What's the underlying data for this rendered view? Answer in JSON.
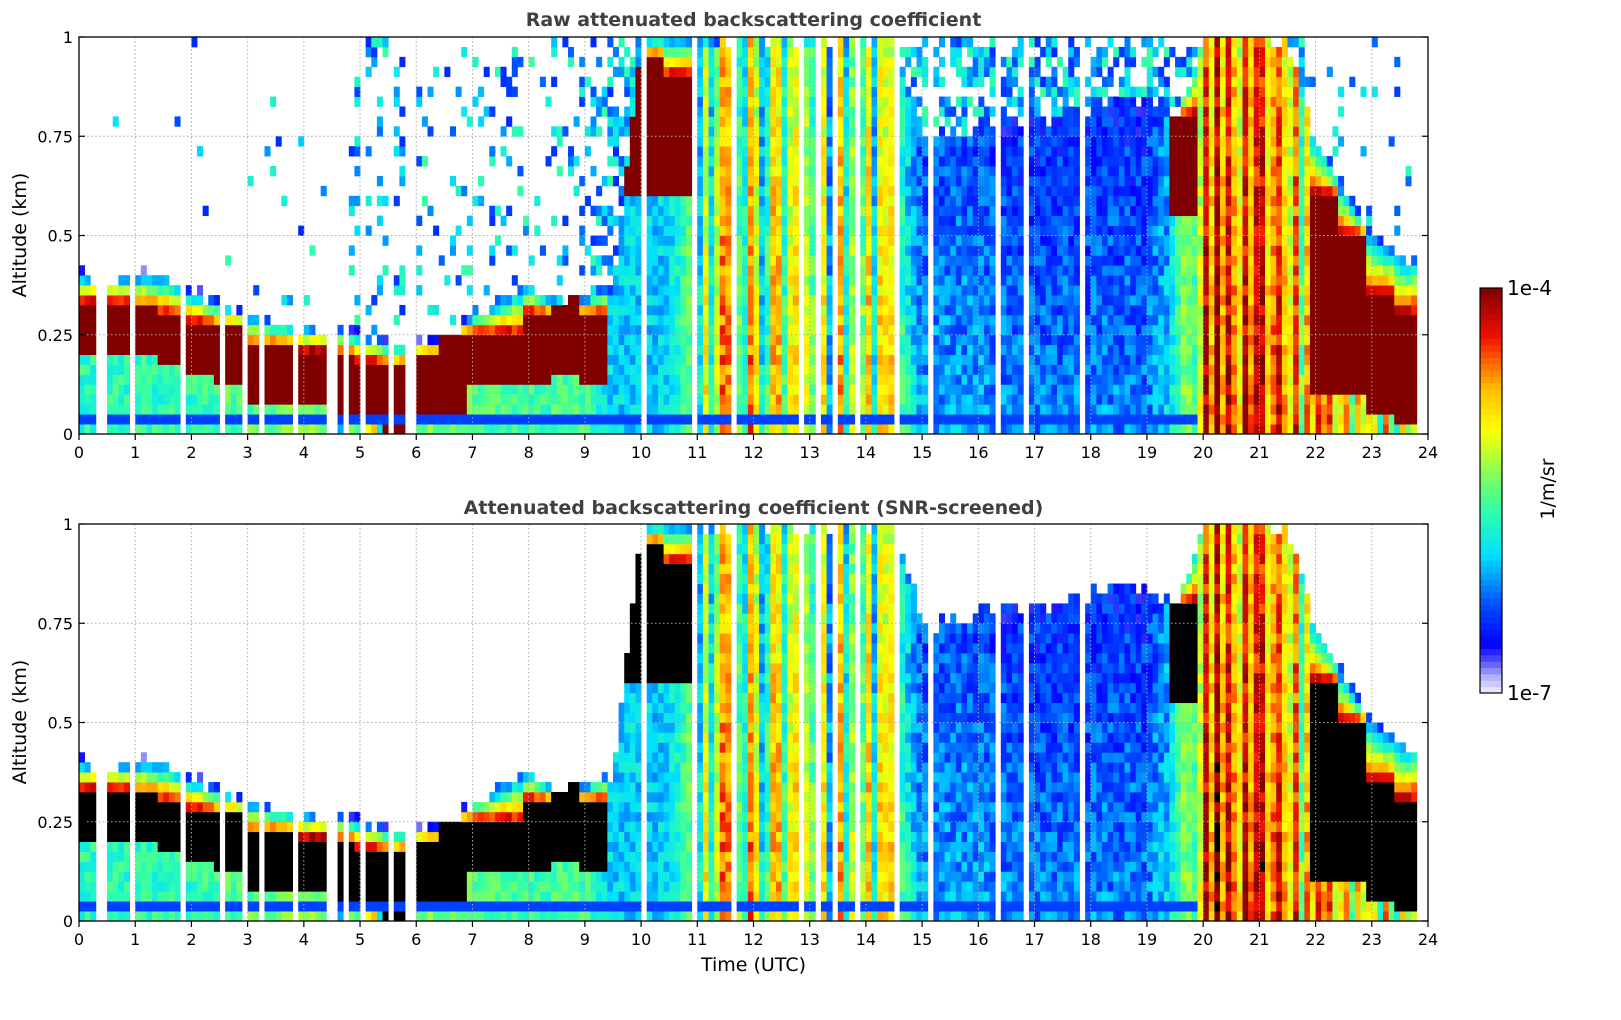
{
  "chart_data": [
    {
      "type": "heatmap",
      "title": "Raw attenuated backscattering coefficient",
      "xlabel": "",
      "ylabel": "Altitude (km)",
      "xlim": [
        0,
        24
      ],
      "ylim": [
        0,
        1
      ],
      "mode": "raw"
    },
    {
      "type": "heatmap",
      "title": "Attenuated backscattering coefficient (SNR-screened)",
      "xlabel": "Time (UTC)",
      "ylabel": "Altitude (km)",
      "xlim": [
        0,
        24
      ],
      "ylim": [
        0,
        1
      ],
      "mode": "screened"
    }
  ],
  "axes": {
    "x_ticks": [
      "0",
      "1",
      "2",
      "3",
      "4",
      "5",
      "6",
      "7",
      "8",
      "9",
      "10",
      "11",
      "12",
      "13",
      "14",
      "15",
      "16",
      "17",
      "18",
      "19",
      "20",
      "21",
      "22",
      "23",
      "24"
    ],
    "y_ticks": [
      {
        "v": 0,
        "label": "0"
      },
      {
        "v": 0.25,
        "label": "0.25"
      },
      {
        "v": 0.5,
        "label": "0.5"
      },
      {
        "v": 0.75,
        "label": "0.75"
      },
      {
        "v": 1,
        "label": "1"
      }
    ],
    "grid": true
  },
  "colorbar": {
    "label": "1/m/sr",
    "max_label": "1e-4",
    "min_label": "1e-7",
    "log_min": -7,
    "log_max": -4,
    "scale": "log"
  },
  "profiles": {
    "time_step_h": 0.5,
    "data_end_utc": 23.8,
    "signal_top_km": [
      0.4,
      0.4,
      0.4,
      0.4,
      0.36,
      0.33,
      0.3,
      0.28,
      0.27,
      0.27,
      0.25,
      0.23,
      0.23,
      0.24,
      0.3,
      0.34,
      0.38,
      0.33,
      0.34,
      0.38,
      1,
      1,
      1,
      1,
      1,
      1,
      1,
      1,
      1,
      1,
      0.75,
      0.75,
      0.78,
      0.78,
      0.8,
      0.8,
      0.82,
      0.85,
      0.85,
      0.8,
      1,
      1,
      1,
      1,
      0.75,
      0.62,
      0.5,
      0.45
    ],
    "dense_base_km": [
      0.2,
      0.2,
      0.19,
      0.17,
      0.15,
      0.12,
      0.08,
      0.07,
      0.07,
      0.05,
      0.02,
      0.0,
      0.02,
      0.05,
      0.12,
      0.12,
      0.12,
      0.15,
      0.12,
      0.6,
      0.6,
      0.6,
      0,
      0,
      0,
      0,
      0,
      0,
      0,
      0,
      0,
      0,
      0,
      0,
      0,
      0,
      0,
      0,
      0,
      0.55,
      0,
      0,
      0,
      0,
      0.1,
      0.1,
      0.05,
      0.03
    ],
    "dense_top_km": [
      0.33,
      0.33,
      0.32,
      0.3,
      0.28,
      0.27,
      0.22,
      0.22,
      0.21,
      0.2,
      0.18,
      0.17,
      0.2,
      0.25,
      0.25,
      0.25,
      0.3,
      0.35,
      0.3,
      0.95,
      0.95,
      0.9,
      0,
      0,
      0,
      0,
      0,
      0,
      0,
      0,
      0,
      0,
      0,
      0,
      0,
      0,
      0,
      0,
      0,
      0.8,
      0,
      0,
      0,
      0,
      0.6,
      0.5,
      0.35,
      0.3
    ],
    "background_log10": [
      -5.7,
      -5.7,
      -5.7,
      -5.7,
      -5.7,
      -5.6,
      -5.5,
      -5.5,
      -5.4,
      -5.4,
      -5.3,
      -5.3,
      -5.4,
      -5.4,
      -5.5,
      -5.6,
      -5.6,
      -5.6,
      -5.6,
      -6.0,
      -6.0,
      -6.0,
      -5.3,
      -5.2,
      -5.2,
      -5.2,
      -5.3,
      -5.3,
      -5.2,
      -5.4,
      -6.1,
      -6.1,
      -6.1,
      -6.2,
      -6.2,
      -6.2,
      -6.2,
      -6.2,
      -6.2,
      -5.8,
      -4.5,
      -4.4,
      -4.4,
      -4.6,
      -5.0,
      -5.0,
      -5.1,
      -5.2
    ],
    "raw_noise_density": [
      0.01,
      0.01,
      0.01,
      0.01,
      0.01,
      0.02,
      0.02,
      0.03,
      0.03,
      0.1,
      0.25,
      0.25,
      0.2,
      0.15,
      0.2,
      0.15,
      0.1,
      0.2,
      0.3,
      0.5,
      0.5,
      0.5,
      0.5,
      0.5,
      0.5,
      0.5,
      0.5,
      0.5,
      0.5,
      0.5,
      0.55,
      0.55,
      0.55,
      0.6,
      0.6,
      0.6,
      0.6,
      0.6,
      0.6,
      0.4,
      0.3,
      0.3,
      0.3,
      0.3,
      0.15,
      0.1,
      0.08,
      0.08
    ],
    "missing_profiles_utc": [
      0.4,
      0.95,
      1.3,
      1.6,
      1.85,
      2.6,
      3.0,
      3.3,
      3.9,
      4.5,
      4.8,
      5.1,
      5.6,
      5.9,
      9.4,
      10.1,
      11.0,
      11.7,
      12.3,
      12.9,
      13.2,
      13.5,
      13.9,
      14.3,
      14.6,
      15.2,
      15.8,
      16.4,
      16.9,
      17.3,
      17.9,
      18.5,
      19.0,
      19.8
    ]
  }
}
